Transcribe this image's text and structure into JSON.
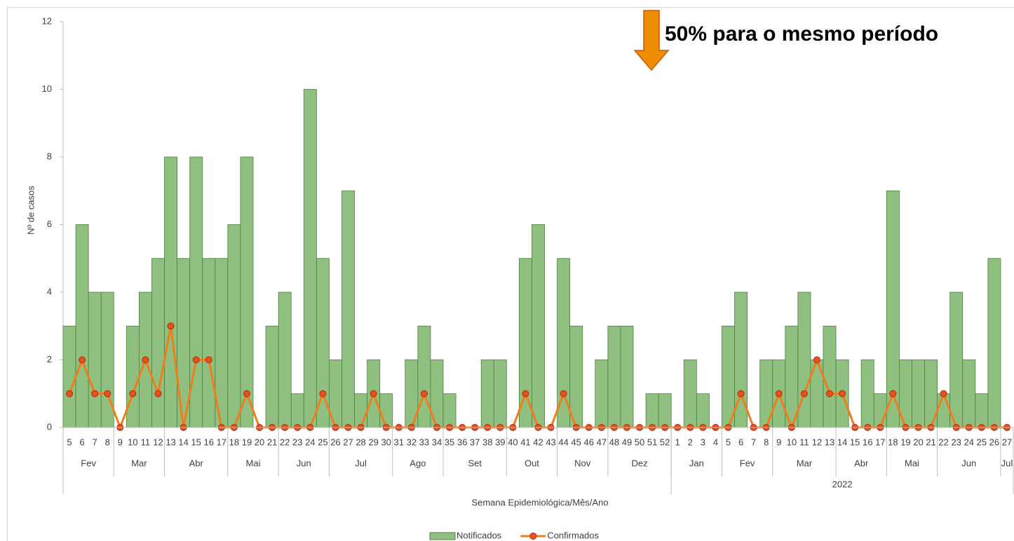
{
  "chart_data": {
    "type": "bar-line",
    "annotation": "50% para o mesmo período",
    "y_label": "Nº de casos",
    "x_label": "Semana Epidemiológica/Mês/Ano",
    "categories": [
      "5",
      "6",
      "7",
      "8",
      "9",
      "10",
      "11",
      "12",
      "13",
      "14",
      "15",
      "16",
      "17",
      "18",
      "19",
      "20",
      "21",
      "22",
      "23",
      "24",
      "25",
      "26",
      "27",
      "28",
      "29",
      "30",
      "31",
      "32",
      "33",
      "34",
      "35",
      "36",
      "37",
      "38",
      "39",
      "40",
      "41",
      "42",
      "43",
      "44",
      "45",
      "46",
      "47",
      "48",
      "49",
      "50",
      "51",
      "52",
      "1",
      "2",
      "3",
      "4",
      "5",
      "6",
      "7",
      "8",
      "9",
      "10",
      "11",
      "12",
      "13",
      "14",
      "15",
      "16",
      "17",
      "18",
      "19",
      "20",
      "21",
      "22",
      "23",
      "24",
      "25",
      "26",
      "27"
    ],
    "month_groups": [
      {
        "label": "Fev",
        "span": 4
      },
      {
        "label": "Mar",
        "span": 4
      },
      {
        "label": "Abr",
        "span": 5
      },
      {
        "label": "Mai",
        "span": 4
      },
      {
        "label": "Jun",
        "span": 4
      },
      {
        "label": "Jul",
        "span": 5
      },
      {
        "label": "Ago",
        "span": 4
      },
      {
        "label": "Set",
        "span": 5
      },
      {
        "label": "Out",
        "span": 4
      },
      {
        "label": "Nov",
        "span": 4
      },
      {
        "label": "Dez",
        "span": 5
      },
      {
        "label": "Jan",
        "span": 4
      },
      {
        "label": "Fev",
        "span": 4
      },
      {
        "label": "Mar",
        "span": 5
      },
      {
        "label": "Abr",
        "span": 4
      },
      {
        "label": "Mai",
        "span": 4
      },
      {
        "label": "Jun",
        "span": 5
      },
      {
        "label": "Jul",
        "span": 1
      }
    ],
    "year_groups": [
      {
        "label": null,
        "span": 48
      },
      {
        "label": "2022",
        "span": 27
      }
    ],
    "series": [
      {
        "name": "Notificados",
        "type": "bar",
        "color": "#8fc07f",
        "edge_color": "#4f7f40",
        "values": [
          3,
          6,
          4,
          4,
          0,
          3,
          4,
          5,
          8,
          5,
          8,
          5,
          5,
          6,
          8,
          0,
          3,
          4,
          1,
          10,
          5,
          2,
          7,
          1,
          2,
          1,
          0,
          2,
          3,
          2,
          1,
          0,
          0,
          2,
          2,
          0,
          5,
          6,
          0,
          5,
          3,
          0,
          2,
          3,
          3,
          0,
          1,
          1,
          0,
          2,
          1,
          0,
          3,
          4,
          0,
          2,
          2,
          3,
          4,
          2,
          3,
          2,
          0,
          2,
          1,
          7,
          2,
          2,
          2,
          1,
          4,
          2,
          1,
          5,
          0
        ]
      },
      {
        "name": "Confirmados",
        "type": "line",
        "color": "#f07c1c",
        "marker_color": "#e8501d",
        "marker_edge": "#b02a0a",
        "values": [
          1,
          2,
          1,
          1,
          0,
          1,
          2,
          1,
          3,
          0,
          2,
          2,
          0,
          0,
          1,
          0,
          0,
          0,
          0,
          0,
          1,
          0,
          0,
          0,
          1,
          0,
          0,
          0,
          1,
          0,
          0,
          0,
          0,
          0,
          0,
          0,
          1,
          0,
          0,
          1,
          0,
          0,
          0,
          0,
          0,
          0,
          0,
          0,
          0,
          0,
          0,
          0,
          0,
          1,
          0,
          0,
          1,
          0,
          1,
          2,
          1,
          1,
          0,
          0,
          0,
          1,
          0,
          0,
          0,
          1,
          0,
          0,
          0,
          0,
          0
        ]
      }
    ],
    "ylim": [
      0,
      12
    ],
    "yticks": [
      0,
      2,
      4,
      6,
      8,
      10,
      12
    ],
    "legend": "bottom"
  }
}
